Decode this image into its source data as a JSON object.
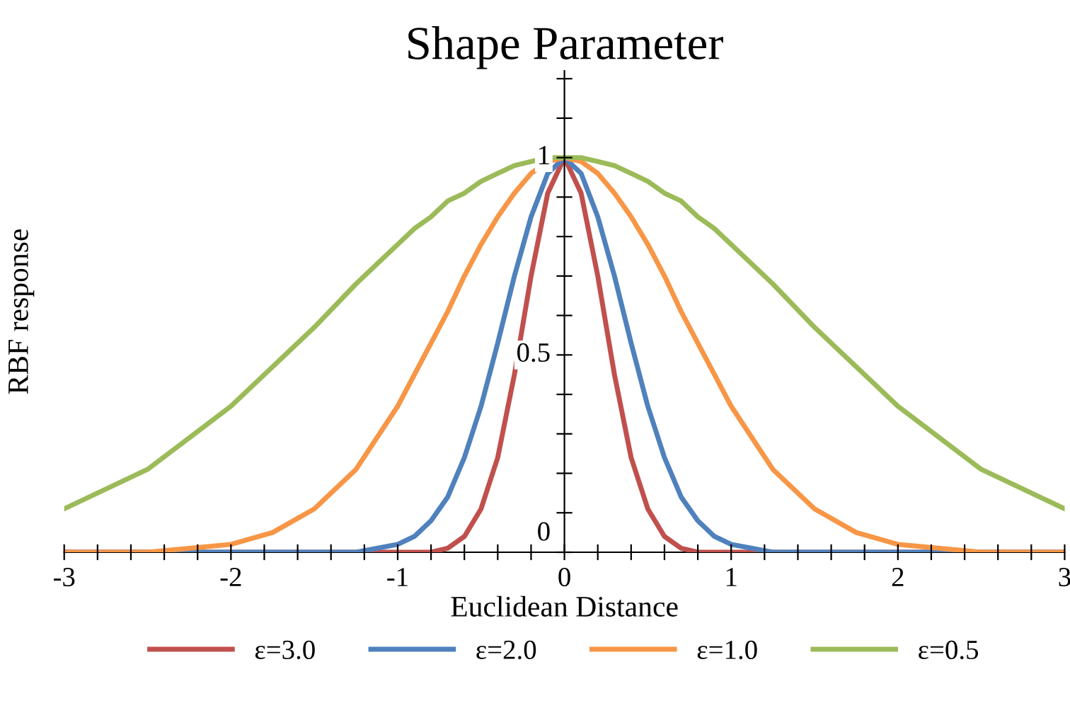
{
  "chart_data": {
    "type": "line",
    "title": "Shape Parameter",
    "xlabel": "Euclidean Distance",
    "ylabel": "RBF response",
    "x": [
      -3,
      -2.5,
      -2,
      -1.75,
      -1.5,
      -1.25,
      -1,
      -0.9,
      -0.8,
      -0.7,
      -0.6,
      -0.5,
      -0.4,
      -0.3,
      -0.2,
      -0.1,
      0,
      0.1,
      0.2,
      0.3,
      0.4,
      0.5,
      0.6,
      0.7,
      0.8,
      0.9,
      1,
      1.25,
      1.5,
      1.75,
      2,
      2.5,
      3
    ],
    "series": [
      {
        "name": "ε=3.0",
        "color": "#c0504d",
        "values": [
          0,
          0,
          0,
          0,
          0,
          0,
          0,
          0,
          0,
          0.01,
          0.04,
          0.11,
          0.24,
          0.45,
          0.7,
          0.91,
          1,
          0.91,
          0.7,
          0.45,
          0.24,
          0.11,
          0.04,
          0.01,
          0,
          0,
          0,
          0,
          0,
          0,
          0,
          0,
          0
        ]
      },
      {
        "name": "ε=2.0",
        "color": "#4f81bd",
        "values": [
          0,
          0,
          0,
          0,
          0,
          0,
          0.02,
          0.04,
          0.08,
          0.14,
          0.24,
          0.37,
          0.53,
          0.7,
          0.85,
          0.96,
          1,
          0.96,
          0.85,
          0.7,
          0.53,
          0.37,
          0.24,
          0.14,
          0.08,
          0.04,
          0.02,
          0,
          0,
          0,
          0,
          0,
          0
        ]
      },
      {
        "name": "ε=1.0",
        "color": "#f79646",
        "values": [
          0,
          0,
          0.02,
          0.05,
          0.11,
          0.21,
          0.37,
          0.45,
          0.53,
          0.61,
          0.7,
          0.78,
          0.85,
          0.91,
          0.96,
          0.99,
          1,
          0.99,
          0.96,
          0.91,
          0.85,
          0.78,
          0.7,
          0.61,
          0.53,
          0.45,
          0.37,
          0.21,
          0.11,
          0.05,
          0.02,
          0,
          0
        ]
      },
      {
        "name": "ε=0.5",
        "color": "#9bbb59",
        "values": [
          0.11,
          0.21,
          0.37,
          0.47,
          0.57,
          0.68,
          0.78,
          0.82,
          0.85,
          0.89,
          0.91,
          0.94,
          0.96,
          0.98,
          0.99,
          1,
          1,
          1,
          0.99,
          0.98,
          0.96,
          0.94,
          0.91,
          0.89,
          0.85,
          0.82,
          0.78,
          0.68,
          0.57,
          0.47,
          0.37,
          0.21,
          0.11
        ]
      }
    ],
    "xlim": [
      -3,
      3
    ],
    "ylim": [
      0,
      1.22
    ],
    "xticks": [
      -3,
      {
        "value": -2.8,
        "label": null
      },
      {
        "value": -2.6,
        "label": null
      },
      {
        "value": -2.4,
        "label": null
      },
      {
        "value": -2.2,
        "label": null
      },
      -2,
      {
        "value": -1.8,
        "label": null
      },
      {
        "value": -1.6,
        "label": null
      },
      {
        "value": -1.4,
        "label": null
      },
      {
        "value": -1.2,
        "label": null
      },
      -1,
      {
        "value": -0.8,
        "label": null
      },
      {
        "value": -0.6,
        "label": null
      },
      {
        "value": -0.4,
        "label": null
      },
      {
        "value": -0.2,
        "label": null
      },
      0,
      {
        "value": 0.2,
        "label": null
      },
      {
        "value": 0.4,
        "label": null
      },
      {
        "value": 0.6,
        "label": null
      },
      {
        "value": 0.8,
        "label": null
      },
      1,
      {
        "value": 1.2,
        "label": null
      },
      {
        "value": 1.4,
        "label": null
      },
      {
        "value": 1.6,
        "label": null
      },
      {
        "value": 1.8,
        "label": null
      },
      2,
      {
        "value": 2.2,
        "label": null
      },
      {
        "value": 2.4,
        "label": null
      },
      {
        "value": 2.6,
        "label": null
      },
      {
        "value": 2.8,
        "label": null
      },
      3
    ],
    "yticks": [
      0,
      {
        "value": 0.1,
        "label": null
      },
      {
        "value": 0.2,
        "label": null
      },
      {
        "value": 0.3,
        "label": null
      },
      {
        "value": 0.4,
        "label": null
      },
      0.5,
      {
        "value": 0.6,
        "label": null
      },
      {
        "value": 0.7,
        "label": null
      },
      {
        "value": 0.8,
        "label": null
      },
      {
        "value": 0.9,
        "label": null
      },
      1,
      {
        "value": 1.1,
        "label": null
      },
      {
        "value": 1.2,
        "label": null
      }
    ],
    "grid": false,
    "legend": "bottom",
    "marker": "none",
    "line_style": "solid"
  }
}
